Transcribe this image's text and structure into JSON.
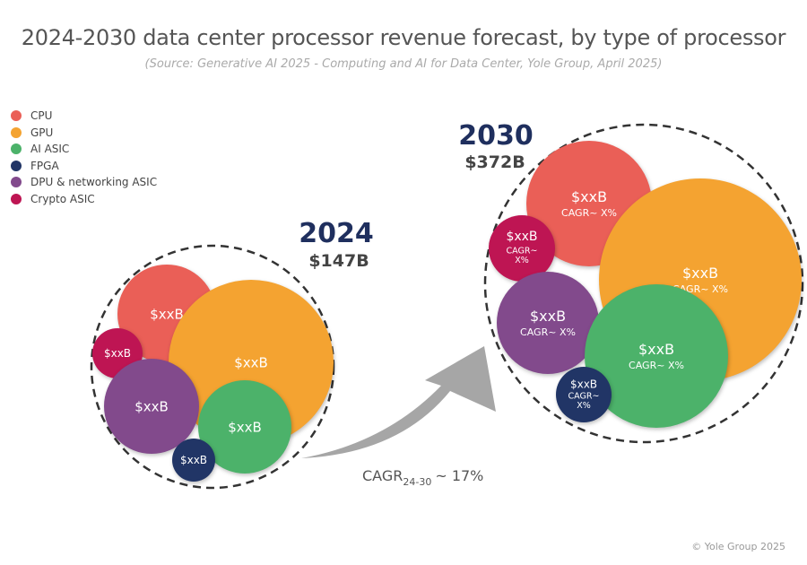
{
  "title": "2024-2030 data center processor revenue forecast, by type of processor",
  "subtitle": "(Source: Generative AI 2025 - Computing and AI for Data Center, Yole Group, April 2025)",
  "copyright": "© Yole Group 2025",
  "chart_data": {
    "type": "bubble",
    "legend": [
      {
        "name": "CPU",
        "color": "#ea5f57"
      },
      {
        "name": "GPU",
        "color": "#f4a331"
      },
      {
        "name": "AI ASIC",
        "color": "#4cb26a"
      },
      {
        "name": "FPGA",
        "color": "#213566"
      },
      {
        "name": "DPU & networking ASIC",
        "color": "#824a8c"
      },
      {
        "name": "Crypto ASIC",
        "color": "#be1553"
      }
    ],
    "legend_placement": "top-left",
    "groups": [
      {
        "year": "2024",
        "total": "$147B",
        "bubbles": [
          {
            "type": "CPU",
            "value": "$xxB"
          },
          {
            "type": "GPU",
            "value": "$xxB"
          },
          {
            "type": "Crypto ASIC",
            "value": "$xxB"
          },
          {
            "type": "DPU & networking ASIC",
            "value": "$xxB"
          },
          {
            "type": "AI ASIC",
            "value": "$xxB"
          },
          {
            "type": "FPGA",
            "value": "$xxB"
          }
        ]
      },
      {
        "year": "2030",
        "total": "$372B",
        "bubbles": [
          {
            "type": "CPU",
            "value": "$xxB",
            "cagr": "CAGR~ X%"
          },
          {
            "type": "GPU",
            "value": "$xxB",
            "cagr": "CAGR~ X%"
          },
          {
            "type": "Crypto ASIC",
            "value": "$xxB",
            "cagr": "CAGR~ X%"
          },
          {
            "type": "DPU & networking ASIC",
            "value": "$xxB",
            "cagr": "CAGR~ X%"
          },
          {
            "type": "AI ASIC",
            "value": "$xxB",
            "cagr": "CAGR~ X%"
          },
          {
            "type": "FPGA",
            "value": "$xxB",
            "cagr": "CAGR~ X%"
          }
        ]
      }
    ],
    "growth": {
      "label": "CAGR",
      "subscript": "24-30",
      "value": "~ 17%"
    }
  }
}
